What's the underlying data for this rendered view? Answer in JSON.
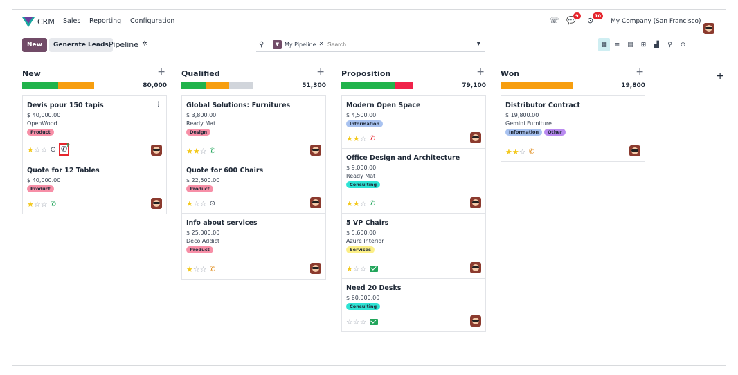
{
  "navbar": {
    "app_name": "CRM",
    "menu": [
      "Sales",
      "Reporting",
      "Configuration"
    ],
    "messages_badge": "9",
    "activities_badge": "10",
    "company": "My Company (San Francisco)"
  },
  "control": {
    "new_label": "New",
    "generate_label": "Generate Leads",
    "breadcrumb": "Pipeline",
    "facet_label": "My Pipeline",
    "search_placeholder": "Search..."
  },
  "views": [
    "kanban-icon",
    "list-icon",
    "calendar-icon",
    "pivot-icon",
    "graph-icon",
    "map-icon",
    "activity-icon"
  ],
  "colors": {
    "brand": "#714b67",
    "green": "#21b34b",
    "orange": "#f79e0f",
    "red": "#f0234a",
    "grey": "#d1d5db"
  },
  "columns": [
    {
      "title": "New",
      "total": "80,000",
      "bar": [
        {
          "color": "#21b34b",
          "share": 0.5
        },
        {
          "color": "#f79e0f",
          "share": 0.5
        }
      ],
      "cards": [
        {
          "title": "Devis pour 150 tapis",
          "amount": "$ 40,000.00",
          "company": "OpenWood",
          "tags": [
            {
              "label": "Product",
              "color": "#f78fa7"
            }
          ],
          "stars": 1,
          "icons": [
            "clock",
            "phone-plus"
          ],
          "kebab": true
        },
        {
          "title": "Quote for 12 Tables",
          "amount": "$ 40,000.00",
          "company": "",
          "tags": [
            {
              "label": "Product",
              "color": "#f78fa7"
            }
          ],
          "stars": 1,
          "icons": [
            "phone-green"
          ]
        }
      ]
    },
    {
      "title": "Qualified",
      "total": "51,300",
      "bar": [
        {
          "color": "#21b34b",
          "share": 0.34
        },
        {
          "color": "#f79e0f",
          "share": 0.33
        },
        {
          "color": "#d1d5db",
          "share": 0.33
        }
      ],
      "cards": [
        {
          "title": "Global Solutions: Furnitures",
          "amount": "$ 3,800.00",
          "company": "Ready Mat",
          "tags": [
            {
              "label": "Design",
              "color": "#f78fa7"
            }
          ],
          "stars": 2,
          "icons": [
            "phone-green"
          ]
        },
        {
          "title": "Quote for 600 Chairs",
          "amount": "$ 22,500.00",
          "company": "",
          "tags": [
            {
              "label": "Product",
              "color": "#f78fa7"
            }
          ],
          "stars": 1,
          "icons": [
            "clock"
          ]
        },
        {
          "title": "Info about services",
          "amount": "$ 25,000.00",
          "company": "Deco Addict",
          "tags": [
            {
              "label": "Product",
              "color": "#f78fa7"
            }
          ],
          "stars": 1,
          "icons": [
            "phone-orange"
          ]
        }
      ]
    },
    {
      "title": "Proposition",
      "total": "79,100",
      "bar": [
        {
          "color": "#21b34b",
          "share": 0.75
        },
        {
          "color": "#f0234a",
          "share": 0.25
        }
      ],
      "cards": [
        {
          "title": "Modern Open Space",
          "amount": "$ 4,500.00",
          "company": "",
          "tags": [
            {
              "label": "Information",
              "color": "#a8c2f0"
            }
          ],
          "stars": 2,
          "icons": [
            "phone-red"
          ]
        },
        {
          "title": "Office Design and Architecture",
          "amount": "$ 9,000.00",
          "company": "Ready Mat",
          "tags": [
            {
              "label": "Consulting",
              "color": "#2ee3d4"
            }
          ],
          "stars": 2,
          "icons": [
            "phone-green"
          ]
        },
        {
          "title": "5 VP Chairs",
          "amount": "$ 5,600.00",
          "company": "Azure Interior",
          "tags": [
            {
              "label": "Services",
              "color": "#fcef86"
            }
          ],
          "stars": 1,
          "icons": [
            "mail"
          ]
        },
        {
          "title": "Need 20 Desks",
          "amount": "$ 60,000.00",
          "company": "",
          "tags": [
            {
              "label": "Consulting",
              "color": "#2ee3d4"
            }
          ],
          "stars": 0,
          "icons": [
            "mail"
          ]
        }
      ]
    },
    {
      "title": "Won",
      "total": "19,800",
      "bar": [
        {
          "color": "#f79e0f",
          "share": 1
        }
      ],
      "cards": [
        {
          "title": "Distributor Contract",
          "amount": "$ 19,800.00",
          "company": "Gemini Furniture",
          "tags": [
            {
              "label": "Information",
              "color": "#a8c2f0"
            },
            {
              "label": "Other",
              "color": "#b98af0"
            }
          ],
          "stars": 2,
          "icons": [
            "phone-orange"
          ]
        }
      ]
    }
  ]
}
